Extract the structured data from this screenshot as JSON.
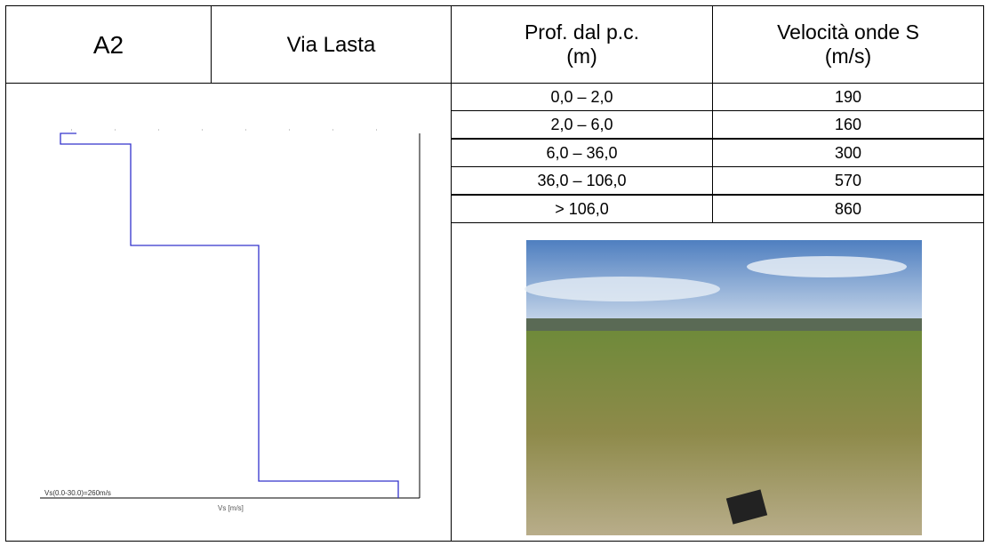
{
  "header": {
    "code": "A2",
    "place": "Via Lasta",
    "depth_heading": [
      "Prof. dal p.c.",
      "(m)"
    ],
    "velocity_heading": [
      "Velocità onde S",
      "(m/s)"
    ]
  },
  "table": {
    "rows": [
      [
        "0,0 – 2,0",
        190
      ],
      [
        "2,0 – 6,0",
        160
      ],
      [
        "6,0 – 36,0",
        300
      ],
      [
        "36,0 – 106,0",
        570
      ],
      [
        "> 106,0",
        860
      ]
    ]
  },
  "profile": {
    "vs30_label": "Vs(0.0-30.0)=260m/s",
    "x_label": "Vs [m/s]"
  }
}
